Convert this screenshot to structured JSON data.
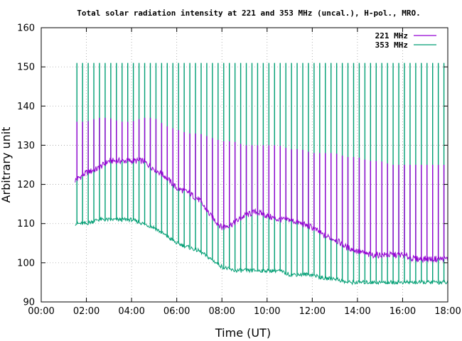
{
  "chart_data": {
    "type": "line",
    "title": "Total solar radiation intensity at 221 and 353 MHz (uncal.), H-pol., MRO.",
    "xlabel": "Time (UT)",
    "ylabel": "Arbitrary unit",
    "xlim": [
      0,
      18
    ],
    "ylim": [
      90,
      160
    ],
    "x_ticks": [
      "00:00",
      "02:00",
      "04:00",
      "06:00",
      "08:00",
      "10:00",
      "12:00",
      "14:00",
      "16:00",
      "18:00"
    ],
    "y_ticks": [
      "90",
      "100",
      "110",
      "120",
      "130",
      "140",
      "150",
      "160"
    ],
    "grid": true,
    "legend_position": "top-right",
    "data_start_hour": 1.5,
    "data_end_hour": 18.0,
    "spike_interval_hours": 0.25,
    "series": [
      {
        "name": "221 MHz",
        "color": "#9400d3",
        "x": [
          1.5,
          2.0,
          2.5,
          3.0,
          3.5,
          4.0,
          4.5,
          5.0,
          5.5,
          6.0,
          6.5,
          7.0,
          7.5,
          8.0,
          8.5,
          9.0,
          9.5,
          10.0,
          10.5,
          11.0,
          11.5,
          12.0,
          12.5,
          13.0,
          13.5,
          14.0,
          14.5,
          15.0,
          15.5,
          16.0,
          16.5,
          17.0,
          17.5,
          18.0
        ],
        "y": [
          121,
          123,
          124,
          126,
          126,
          126,
          126,
          124,
          122,
          119,
          118,
          116,
          112,
          109,
          110,
          112,
          113,
          112,
          111,
          111,
          110,
          109,
          107,
          106,
          104,
          103,
          102,
          102,
          102,
          102,
          101,
          101,
          101,
          101
        ],
        "spike_peaks": [
          136,
          136,
          137,
          137,
          136,
          136,
          137,
          137,
          135,
          134,
          133,
          133,
          132,
          131,
          131,
          130,
          130,
          130,
          130,
          129,
          129,
          128,
          128,
          128,
          127,
          127,
          126,
          126,
          125,
          125,
          125,
          125,
          125,
          125
        ]
      },
      {
        "name": "353 MHz",
        "color": "#009e73",
        "x": [
          1.5,
          2.0,
          2.5,
          3.0,
          3.5,
          4.0,
          4.5,
          5.0,
          5.5,
          6.0,
          6.5,
          7.0,
          7.5,
          8.0,
          8.5,
          9.0,
          9.5,
          10.0,
          10.5,
          11.0,
          11.5,
          12.0,
          12.5,
          13.0,
          13.5,
          14.0,
          14.5,
          15.0,
          15.5,
          16.0,
          16.5,
          17.0,
          17.5,
          18.0
        ],
        "y": [
          110,
          110,
          111,
          111,
          111,
          111,
          110,
          109,
          107,
          105,
          104,
          103,
          101,
          99,
          98,
          98,
          98,
          98,
          98,
          97,
          97,
          97,
          96,
          96,
          95,
          95,
          95,
          95,
          95,
          95,
          95,
          95,
          95,
          95
        ],
        "spike_peaks": [
          151,
          151,
          151,
          151,
          151,
          151,
          151,
          151,
          151,
          151,
          151,
          151,
          151,
          151,
          151,
          151,
          151,
          151,
          151,
          151,
          151,
          151,
          151,
          151,
          151,
          151,
          151,
          151,
          151,
          151,
          151,
          151,
          151,
          151
        ]
      }
    ]
  }
}
